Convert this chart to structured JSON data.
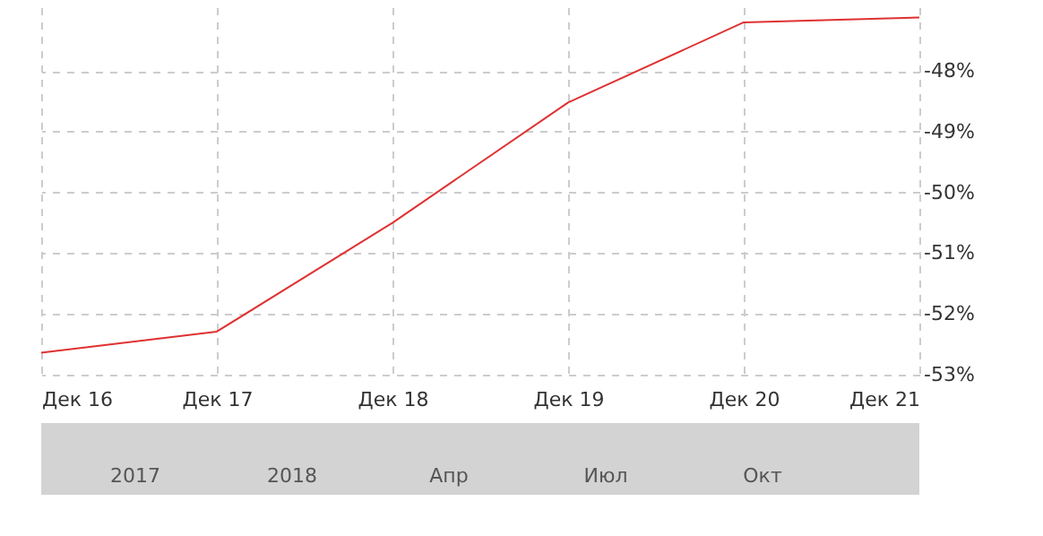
{
  "chart_data": {
    "type": "line",
    "categories": [
      "Дек 16",
      "Дек 17",
      "Дек 18",
      "Дек 19",
      "Дек 20",
      "Дек 21"
    ],
    "series": [
      {
        "color": "#e03131",
        "values": [
          -52.64,
          -52.29,
          -50.5,
          -48.52,
          -47.2,
          -47.12
        ]
      }
    ],
    "ylim": [
      -53,
      -46.95
    ],
    "yticks": [
      {
        "value": -53,
        "label": "-53%"
      },
      {
        "value": -52,
        "label": "-52%"
      },
      {
        "value": -51,
        "label": "-51%"
      },
      {
        "value": -50,
        "label": "-50%"
      },
      {
        "value": -49,
        "label": "-49%"
      },
      {
        "value": -48,
        "label": "-48%"
      }
    ],
    "grid": true,
    "line_style": "solid",
    "marker": "none",
    "annotations": [
      "2017",
      "2018",
      "Апр",
      "Июл",
      "Окт"
    ]
  }
}
